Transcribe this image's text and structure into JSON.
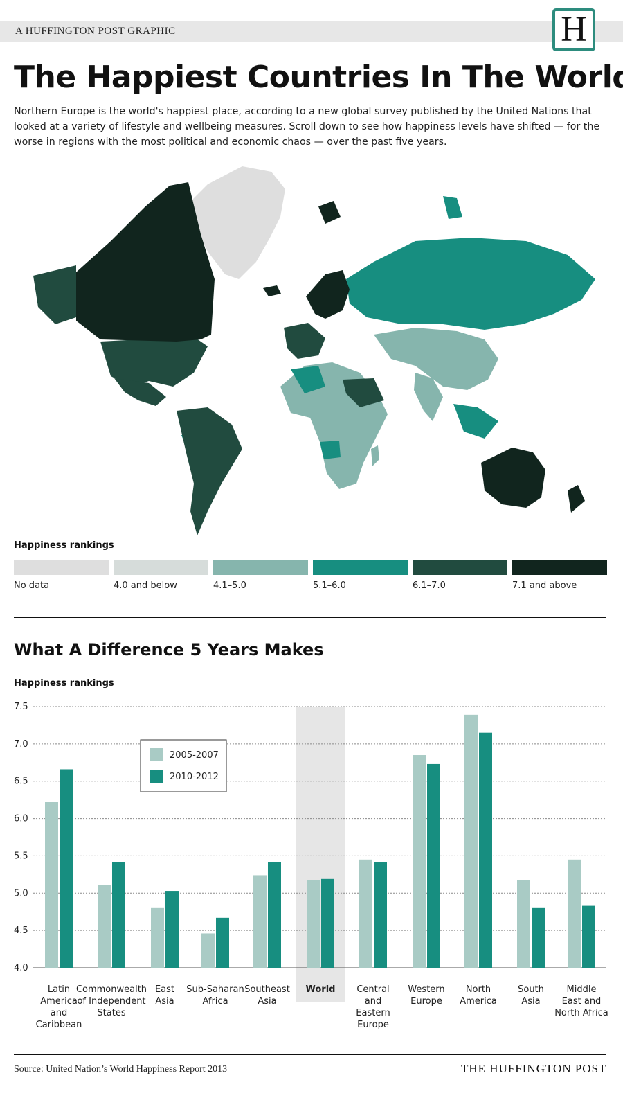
{
  "header": {
    "kicker": "A HUFFINGTON POST GRAPHIC",
    "logo_letter": "H",
    "title": "The Happiest Countries In The World",
    "intro": "Northern Europe is the world's happiest place, according to a new global survey published by the United Nations that looked at a variety of lifestyle and wellbeing measures. Scroll down to see how happiness levels have shifted — for the worse in regions with the most political and economic chaos — over the past five years."
  },
  "map_legend": {
    "title": "Happiness rankings",
    "items": [
      {
        "label": "No data",
        "color": "#dedede"
      },
      {
        "label": "4.0 and below",
        "color": "#d6dcda"
      },
      {
        "label": "4.1–5.0",
        "color": "#86b5ad"
      },
      {
        "label": "5.1–6.0",
        "color": "#178e80"
      },
      {
        "label": "6.1–7.0",
        "color": "#214b3f"
      },
      {
        "label": "7.1 and above",
        "color": "#11251e"
      }
    ]
  },
  "section2": {
    "title": "What A Difference 5 Years Makes"
  },
  "chart_data": {
    "type": "bar",
    "subtitle": "Happiness rankings",
    "ylim": [
      4.0,
      7.5
    ],
    "yticks": [
      "7.5",
      "7.0",
      "6.5",
      "6.0",
      "5.5",
      "5.0",
      "4.5",
      "4.0"
    ],
    "grid": true,
    "legend_position": "top-left",
    "highlight_category": "World",
    "categories": [
      "Latin America and Caribbean",
      "Commonwealth of Independent States",
      "East Asia",
      "Sub-Saharan Africa",
      "Southeast Asia",
      "World",
      "Central and Eastern Europe",
      "Western Europe",
      "North America",
      "South Asia",
      "Middle East and North Africa"
    ],
    "category_label_lines": [
      [
        "Latin",
        "America",
        "and",
        "Caribbean"
      ],
      [
        "Commonwealth",
        "of Independent",
        "States"
      ],
      [
        "East",
        "Asia"
      ],
      [
        "Sub-Saharan",
        "Africa"
      ],
      [
        "Southeast",
        "Asia"
      ],
      [
        "World"
      ],
      [
        "Central",
        "and",
        "Eastern",
        "Europe"
      ],
      [
        "Western",
        "Europe"
      ],
      [
        "North",
        "America"
      ],
      [
        "South",
        "Asia"
      ],
      [
        "Middle",
        "East and",
        "North Africa"
      ]
    ],
    "series": [
      {
        "name": "2005-2007",
        "color": "#a9cbc5",
        "values": [
          6.22,
          5.11,
          4.8,
          4.46,
          5.24,
          5.17,
          5.45,
          6.85,
          7.39,
          5.17,
          5.45
        ]
      },
      {
        "name": "2010-2012",
        "color": "#178e80",
        "values": [
          6.66,
          5.42,
          5.03,
          4.67,
          5.42,
          5.19,
          5.42,
          6.73,
          7.15,
          4.8,
          4.83
        ]
      }
    ]
  },
  "footer": {
    "source": "Source: United Nation’s World Happiness Report 2013",
    "brand": "THE HUFFINGTON POST"
  }
}
